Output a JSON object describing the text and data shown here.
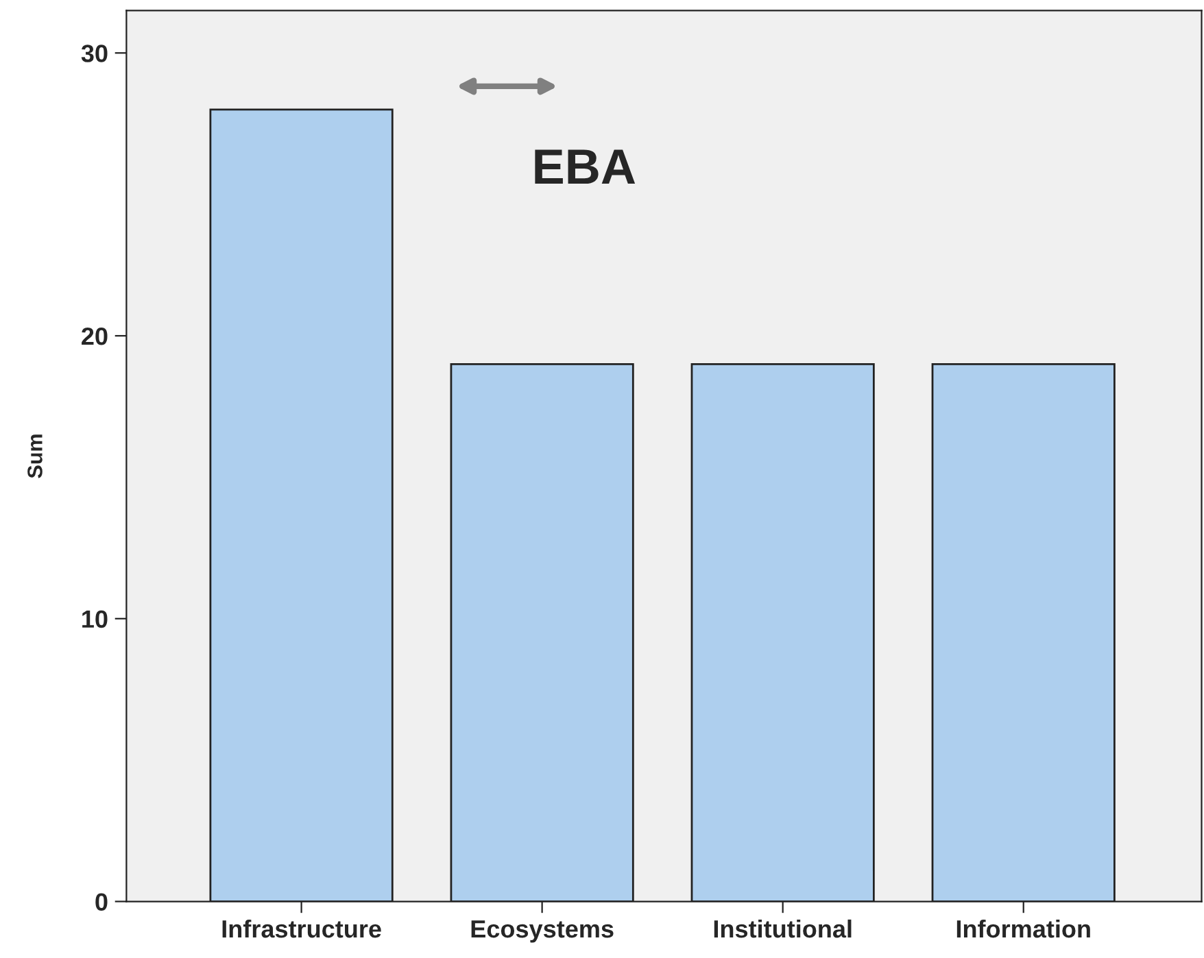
{
  "chart_data": {
    "type": "bar",
    "ylabel": "Sum",
    "categories": [
      "Infrastructure",
      "Ecosystems",
      "Institutional",
      "Information"
    ],
    "values": [
      28,
      19,
      19,
      19
    ],
    "color": "#aecfee",
    "ylim": [
      0,
      31.5
    ],
    "yticks": [
      0,
      10,
      20,
      30
    ],
    "grid": false,
    "legend": false,
    "annotations": [
      "EBA"
    ]
  }
}
